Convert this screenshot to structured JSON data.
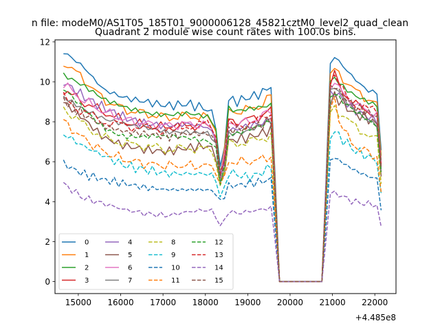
{
  "chart_data": {
    "type": "line",
    "suptitle": "n file: modeM0/AS1T05_185T01_9000006128_45821cztM0_level2_quad_clean",
    "title": "Quadrant 2 module wise count rates with 100.0s bins.",
    "xlabel": "",
    "ylabel": "",
    "offset_text": "+4.485e8",
    "xlim": [
      14450,
      22500
    ],
    "ylim": [
      -0.6,
      12.1
    ],
    "x_ticks": [
      15000,
      16000,
      17000,
      18000,
      19000,
      20000,
      21000,
      22000
    ],
    "y_ticks": [
      0,
      2,
      4,
      6,
      8,
      10,
      12
    ],
    "grid": false,
    "legend": {
      "placement": "lower-left",
      "columns": 4
    },
    "x_anchor": [
      14650,
      15100,
      15600,
      16100,
      16600,
      17100,
      17600,
      18100,
      18250,
      18400,
      18500,
      18700,
      19000,
      19300,
      19550,
      19600,
      19700,
      19800,
      20000,
      20500,
      20800,
      20900,
      21000,
      21200,
      21500,
      21800,
      22100,
      22200
    ],
    "series": [
      {
        "name": "0",
        "color": "#1f77b4",
        "dash": false,
        "profile": [
          11.5,
          10.8,
          9.6,
          9.2,
          9.0,
          8.8,
          8.9,
          8.6,
          7.9,
          4.4,
          9.2,
          9.0,
          9.2,
          9.4,
          9.8,
          9.9,
          0.0,
          0.0,
          0.0,
          0.0,
          0.0,
          10.4,
          11.4,
          10.9,
          10.2,
          9.6,
          9.4,
          3.8
        ]
      },
      {
        "name": "1",
        "color": "#ff7f0e",
        "dash": false,
        "profile": [
          11.0,
          10.2,
          9.1,
          8.6,
          8.4,
          8.2,
          8.3,
          8.2,
          7.6,
          4.3,
          8.6,
          8.5,
          8.6,
          8.8,
          9.3,
          9.4,
          0.0,
          0.0,
          0.0,
          0.0,
          0.0,
          9.9,
          10.7,
          10.3,
          9.6,
          9.2,
          8.8,
          3.5
        ]
      },
      {
        "name": "2",
        "color": "#2ca02c",
        "dash": false,
        "profile": [
          10.5,
          10.0,
          9.3,
          8.9,
          8.6,
          8.5,
          8.6,
          8.4,
          7.8,
          4.4,
          8.9,
          8.7,
          8.8,
          8.9,
          9.0,
          9.1,
          0.0,
          0.0,
          0.0,
          0.0,
          0.0,
          9.8,
          10.5,
          10.0,
          9.5,
          9.2,
          8.9,
          3.6
        ]
      },
      {
        "name": "3",
        "color": "#d62728",
        "dash": false,
        "profile": [
          9.6,
          9.0,
          8.5,
          8.0,
          7.8,
          7.7,
          7.8,
          7.8,
          7.2,
          4.2,
          8.1,
          8.0,
          8.1,
          8.3,
          8.6,
          8.7,
          0.0,
          0.0,
          0.0,
          0.0,
          0.0,
          9.3,
          10.6,
          9.6,
          8.9,
          8.6,
          8.2,
          3.4
        ]
      },
      {
        "name": "4",
        "color": "#9467bd",
        "dash": false,
        "profile": [
          10.0,
          9.3,
          8.7,
          8.2,
          7.9,
          7.8,
          7.9,
          7.7,
          7.1,
          4.3,
          7.6,
          7.6,
          7.8,
          7.9,
          8.1,
          8.2,
          0.0,
          0.0,
          0.0,
          0.0,
          0.0,
          9.0,
          9.6,
          9.2,
          8.6,
          8.3,
          8.0,
          3.2
        ]
      },
      {
        "name": "5",
        "color": "#8c564b",
        "dash": false,
        "profile": [
          9.0,
          8.2,
          7.2,
          6.8,
          6.6,
          6.5,
          6.7,
          6.8,
          6.3,
          4.1,
          7.0,
          7.1,
          7.2,
          7.4,
          7.6,
          7.7,
          0.0,
          0.0,
          0.0,
          0.0,
          0.0,
          8.4,
          9.4,
          9.0,
          8.4,
          8.2,
          7.8,
          3.0
        ]
      },
      {
        "name": "6",
        "color": "#e377c2",
        "dash": false,
        "profile": [
          9.9,
          9.1,
          8.5,
          8.1,
          7.9,
          7.8,
          7.9,
          7.8,
          7.3,
          4.4,
          8.0,
          7.9,
          8.0,
          8.2,
          8.6,
          8.8,
          0.0,
          0.0,
          0.0,
          0.0,
          0.0,
          9.5,
          10.2,
          9.5,
          8.9,
          8.6,
          8.3,
          3.3
        ]
      },
      {
        "name": "7",
        "color": "#7f7f7f",
        "dash": false,
        "profile": [
          9.3,
          8.6,
          8.0,
          7.7,
          7.6,
          7.5,
          7.6,
          7.6,
          7.0,
          4.2,
          7.6,
          7.5,
          7.6,
          7.8,
          8.1,
          8.4,
          0.0,
          0.0,
          0.0,
          0.0,
          0.0,
          9.0,
          9.8,
          9.3,
          8.6,
          8.2,
          7.9,
          3.2
        ]
      },
      {
        "name": "8",
        "color": "#bcbd22",
        "dash": true,
        "profile": [
          8.7,
          7.9,
          7.2,
          6.9,
          6.8,
          6.6,
          6.7,
          6.6,
          6.2,
          4.1,
          6.9,
          6.9,
          7.0,
          7.1,
          7.4,
          7.6,
          0.0,
          0.0,
          0.0,
          0.0,
          0.0,
          8.0,
          8.9,
          8.4,
          7.8,
          7.4,
          7.0,
          2.9
        ]
      },
      {
        "name": "9",
        "color": "#17becf",
        "dash": true,
        "profile": [
          7.4,
          6.8,
          6.3,
          5.8,
          5.6,
          5.4,
          5.4,
          5.4,
          5.1,
          3.8,
          5.5,
          5.4,
          5.2,
          5.4,
          5.8,
          6.2,
          0.0,
          0.0,
          0.0,
          0.0,
          0.0,
          7.0,
          7.6,
          7.2,
          6.6,
          6.3,
          6.0,
          2.6
        ]
      },
      {
        "name": "10",
        "color": "#1f77b4",
        "dash": true,
        "profile": [
          5.9,
          5.4,
          5.1,
          4.9,
          4.7,
          4.6,
          4.6,
          4.6,
          4.4,
          3.8,
          4.8,
          4.8,
          4.9,
          5.0,
          5.1,
          5.3,
          0.0,
          0.0,
          0.0,
          0.0,
          0.0,
          5.8,
          6.3,
          6.0,
          5.6,
          5.3,
          5.1,
          2.2
        ]
      },
      {
        "name": "11",
        "color": "#ff7f0e",
        "dash": true,
        "profile": [
          8.0,
          7.2,
          6.5,
          6.1,
          5.9,
          5.8,
          5.8,
          5.8,
          5.6,
          4.4,
          6.0,
          6.0,
          6.0,
          6.1,
          6.3,
          6.5,
          0.0,
          0.0,
          0.0,
          0.0,
          0.0,
          7.6,
          9.6,
          7.8,
          6.8,
          6.5,
          6.2,
          2.7
        ]
      },
      {
        "name": "12",
        "color": "#2ca02c",
        "dash": true,
        "profile": [
          9.5,
          8.6,
          7.8,
          7.4,
          7.2,
          7.1,
          7.2,
          7.2,
          6.8,
          4.2,
          7.4,
          7.4,
          7.5,
          7.6,
          7.9,
          8.3,
          0.0,
          0.0,
          0.0,
          0.0,
          0.0,
          8.8,
          9.6,
          9.0,
          8.4,
          8.0,
          7.7,
          3.1
        ]
      },
      {
        "name": "13",
        "color": "#d62728",
        "dash": true,
        "profile": [
          9.2,
          8.5,
          8.0,
          7.8,
          7.7,
          7.6,
          7.8,
          7.9,
          7.4,
          4.5,
          7.9,
          7.8,
          7.9,
          8.1,
          8.4,
          8.6,
          0.0,
          0.0,
          0.0,
          0.0,
          0.0,
          9.6,
          10.6,
          9.6,
          8.9,
          8.7,
          8.4,
          3.4
        ]
      },
      {
        "name": "14",
        "color": "#9467bd",
        "dash": true,
        "profile": [
          4.9,
          4.2,
          3.9,
          3.6,
          3.4,
          3.3,
          3.5,
          3.6,
          3.3,
          2.5,
          3.6,
          3.4,
          3.5,
          3.6,
          3.7,
          3.9,
          0.0,
          0.0,
          0.0,
          0.0,
          0.0,
          4.3,
          4.5,
          4.3,
          4.0,
          3.9,
          3.8,
          1.6
        ]
      },
      {
        "name": "15",
        "color": "#8c564b",
        "dash": true,
        "profile": [
          9.1,
          8.4,
          7.8,
          7.5,
          7.4,
          7.3,
          7.4,
          7.4,
          7.0,
          4.3,
          7.6,
          7.6,
          7.7,
          7.8,
          8.1,
          8.3,
          0.0,
          0.0,
          0.0,
          0.0,
          0.0,
          9.2,
          10.0,
          9.4,
          8.8,
          8.5,
          8.2,
          3.3
        ]
      }
    ]
  }
}
